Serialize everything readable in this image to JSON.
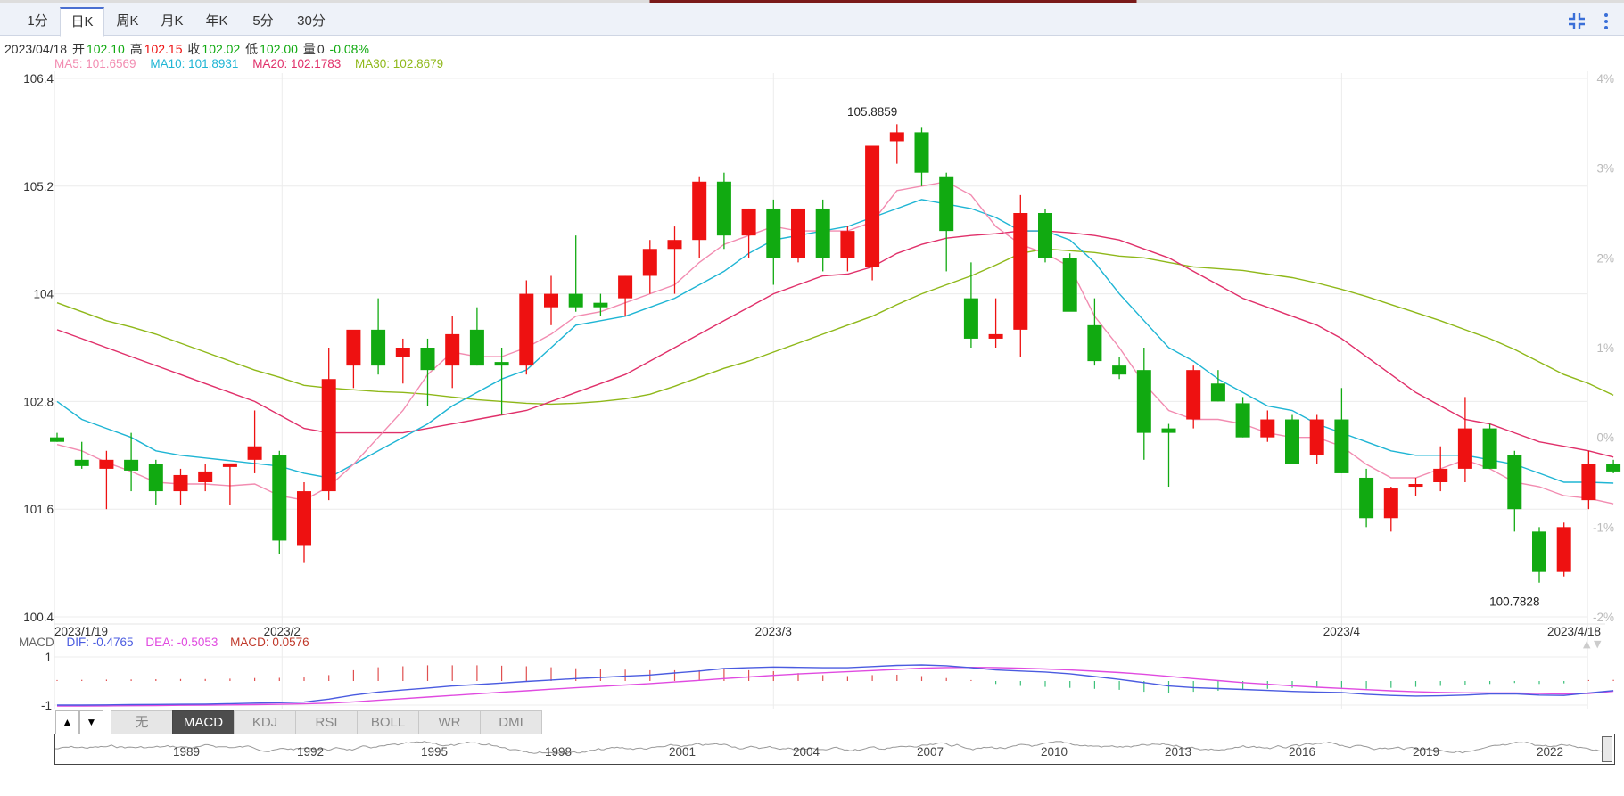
{
  "tabs": [
    {
      "label": "1分",
      "active": false
    },
    {
      "label": "日K",
      "active": true
    },
    {
      "label": "周K",
      "active": false
    },
    {
      "label": "月K",
      "active": false
    },
    {
      "label": "年K",
      "active": false
    },
    {
      "label": "5分",
      "active": false
    },
    {
      "label": "30分",
      "active": false
    }
  ],
  "toolbar": {
    "icons": [
      "compress-icon",
      "more-vertical-icon"
    ]
  },
  "info": {
    "date": "2023/04/18",
    "open_label": "开",
    "open": "102.10",
    "high_label": "高",
    "high": "102.15",
    "close_label": "收",
    "close": "102.02",
    "low_label": "低",
    "low": "102.00",
    "volume_label": "量",
    "volume": "0",
    "change": "-0.08%"
  },
  "ma": {
    "ma5": "MA5: 101.6569",
    "ma10": "MA10: 101.8931",
    "ma20": "MA20: 102.1783",
    "ma30": "MA30: 102.8679"
  },
  "macd_legend": {
    "label": "MACD",
    "dif": "DIF: -0.4765",
    "dea": "DEA: -0.5053",
    "macd": "MACD: 0.0576"
  },
  "colors": {
    "up": "#ee1111",
    "down": "#11aa11",
    "ma5": "#f28cb1",
    "ma10": "#1fb5d4",
    "ma20": "#e0306a",
    "ma30": "#8fb81a",
    "dif": "#4a5be0",
    "dea": "#e04ae0"
  },
  "indicator_buttons": [
    {
      "label": "无",
      "active": false
    },
    {
      "label": "MACD",
      "active": true
    },
    {
      "label": "KDJ",
      "active": false
    },
    {
      "label": "RSI",
      "active": false
    },
    {
      "label": "BOLL",
      "active": false
    },
    {
      "label": "WR",
      "active": false
    },
    {
      "label": "DMI",
      "active": false
    }
  ],
  "nav_buttons": {
    "up": "▲",
    "down": "▼"
  },
  "navigator": {
    "years": [
      "1989",
      "1992",
      "1995",
      "1998",
      "2001",
      "2004",
      "2007",
      "2010",
      "2013",
      "2016",
      "2019",
      "2022"
    ]
  },
  "chart_data": [
    {
      "type": "candlestick",
      "yticks": [
        "106.4",
        "105.2",
        "104",
        "102.8",
        "101.6",
        "100.4"
      ],
      "ylim": [
        100.4,
        106.4
      ],
      "pct_ticks": [
        "4%",
        "3%",
        "2%",
        "1%",
        "0%",
        "-1%",
        "-2%"
      ],
      "xticks": [
        "2023/1/19",
        "2023/2",
        "2023/3",
        "2023/4",
        "2023/4/18"
      ],
      "xtick_index": [
        0,
        9,
        29,
        52,
        62
      ],
      "annotations": [
        {
          "text": "105.8859",
          "index": 33,
          "value": 105.8859
        },
        {
          "text": "100.7828",
          "index": 59,
          "value": 100.7828
        }
      ],
      "candles": [
        {
          "o": 102.4,
          "h": 102.45,
          "l": 102.35,
          "c": 102.35
        },
        {
          "o": 102.15,
          "h": 102.35,
          "l": 102.05,
          "c": 102.08
        },
        {
          "o": 102.05,
          "h": 102.25,
          "l": 101.6,
          "c": 102.15
        },
        {
          "o": 102.15,
          "h": 102.45,
          "l": 101.8,
          "c": 102.03
        },
        {
          "o": 102.1,
          "h": 102.15,
          "l": 101.65,
          "c": 101.8
        },
        {
          "o": 101.8,
          "h": 102.05,
          "l": 101.65,
          "c": 101.98
        },
        {
          "o": 101.9,
          "h": 102.1,
          "l": 101.8,
          "c": 102.02
        },
        {
          "o": 102.07,
          "h": 102.1,
          "l": 101.65,
          "c": 102.11
        },
        {
          "o": 102.15,
          "h": 102.7,
          "l": 102.0,
          "c": 102.3
        },
        {
          "o": 102.2,
          "h": 102.25,
          "l": 101.1,
          "c": 101.25
        },
        {
          "o": 101.2,
          "h": 101.9,
          "l": 101.0,
          "c": 101.8
        },
        {
          "o": 101.8,
          "h": 103.4,
          "l": 101.7,
          "c": 103.05
        },
        {
          "o": 103.2,
          "h": 103.55,
          "l": 102.95,
          "c": 103.6
        },
        {
          "o": 103.6,
          "h": 103.95,
          "l": 103.1,
          "c": 103.2
        },
        {
          "o": 103.3,
          "h": 103.5,
          "l": 103.0,
          "c": 103.4
        },
        {
          "o": 103.4,
          "h": 103.5,
          "l": 102.75,
          "c": 103.15
        },
        {
          "o": 103.2,
          "h": 103.75,
          "l": 102.95,
          "c": 103.55
        },
        {
          "o": 103.6,
          "h": 103.85,
          "l": 103.2,
          "c": 103.2
        },
        {
          "o": 103.24,
          "h": 103.4,
          "l": 102.65,
          "c": 103.2
        },
        {
          "o": 103.2,
          "h": 104.15,
          "l": 103.1,
          "c": 104.0
        },
        {
          "o": 103.85,
          "h": 104.2,
          "l": 103.65,
          "c": 104.0
        },
        {
          "o": 104.0,
          "h": 104.65,
          "l": 103.8,
          "c": 103.85
        },
        {
          "o": 103.9,
          "h": 104.0,
          "l": 103.75,
          "c": 103.85
        },
        {
          "o": 103.95,
          "h": 104.2,
          "l": 103.75,
          "c": 104.2
        },
        {
          "o": 104.2,
          "h": 104.6,
          "l": 104.0,
          "c": 104.5
        },
        {
          "o": 104.5,
          "h": 104.75,
          "l": 104.0,
          "c": 104.6
        },
        {
          "o": 104.6,
          "h": 105.3,
          "l": 104.4,
          "c": 105.25
        },
        {
          "o": 105.25,
          "h": 105.35,
          "l": 104.5,
          "c": 104.65
        },
        {
          "o": 104.65,
          "h": 104.95,
          "l": 104.4,
          "c": 104.95
        },
        {
          "o": 104.95,
          "h": 105.05,
          "l": 104.1,
          "c": 104.4
        },
        {
          "o": 104.4,
          "h": 104.95,
          "l": 104.35,
          "c": 104.95
        },
        {
          "o": 104.95,
          "h": 105.05,
          "l": 104.25,
          "c": 104.4
        },
        {
          "o": 104.4,
          "h": 104.75,
          "l": 104.25,
          "c": 104.7
        },
        {
          "o": 104.3,
          "h": 105.65,
          "l": 104.15,
          "c": 105.65
        },
        {
          "o": 105.7,
          "h": 105.89,
          "l": 105.45,
          "c": 105.8
        },
        {
          "o": 105.8,
          "h": 105.85,
          "l": 105.2,
          "c": 105.35
        },
        {
          "o": 105.3,
          "h": 105.35,
          "l": 104.25,
          "c": 104.7
        },
        {
          "o": 103.95,
          "h": 104.35,
          "l": 103.4,
          "c": 103.5
        },
        {
          "o": 103.5,
          "h": 103.95,
          "l": 103.4,
          "c": 103.55
        },
        {
          "o": 103.6,
          "h": 105.1,
          "l": 103.3,
          "c": 104.9
        },
        {
          "o": 104.9,
          "h": 104.95,
          "l": 104.35,
          "c": 104.4
        },
        {
          "o": 104.4,
          "h": 104.45,
          "l": 103.85,
          "c": 103.8
        },
        {
          "o": 103.65,
          "h": 103.95,
          "l": 103.2,
          "c": 103.25
        },
        {
          "o": 103.2,
          "h": 103.3,
          "l": 103.05,
          "c": 103.1
        },
        {
          "o": 103.15,
          "h": 103.4,
          "l": 102.15,
          "c": 102.45
        },
        {
          "o": 102.5,
          "h": 102.55,
          "l": 101.85,
          "c": 102.45
        },
        {
          "o": 102.6,
          "h": 103.2,
          "l": 102.5,
          "c": 103.15
        },
        {
          "o": 103.0,
          "h": 103.15,
          "l": 102.8,
          "c": 102.8
        },
        {
          "o": 102.78,
          "h": 102.85,
          "l": 102.4,
          "c": 102.4
        },
        {
          "o": 102.4,
          "h": 102.7,
          "l": 102.35,
          "c": 102.6
        },
        {
          "o": 102.6,
          "h": 102.65,
          "l": 102.1,
          "c": 102.1
        },
        {
          "o": 102.2,
          "h": 102.65,
          "l": 102.1,
          "c": 102.6
        },
        {
          "o": 102.6,
          "h": 102.95,
          "l": 102.0,
          "c": 102.0
        },
        {
          "o": 101.95,
          "h": 102.05,
          "l": 101.4,
          "c": 101.5
        },
        {
          "o": 101.5,
          "h": 101.85,
          "l": 101.35,
          "c": 101.83
        },
        {
          "o": 101.85,
          "h": 101.95,
          "l": 101.75,
          "c": 101.88
        },
        {
          "o": 101.9,
          "h": 102.3,
          "l": 101.8,
          "c": 102.05
        },
        {
          "o": 102.05,
          "h": 102.85,
          "l": 101.9,
          "c": 102.5
        },
        {
          "o": 102.5,
          "h": 102.55,
          "l": 102.05,
          "c": 102.05
        },
        {
          "o": 102.2,
          "h": 102.25,
          "l": 101.35,
          "c": 101.6
        },
        {
          "o": 101.35,
          "h": 101.4,
          "l": 100.78,
          "c": 100.9
        },
        {
          "o": 100.9,
          "h": 101.45,
          "l": 100.85,
          "c": 101.4
        },
        {
          "o": 101.7,
          "h": 102.25,
          "l": 101.6,
          "c": 102.1
        },
        {
          "o": 102.1,
          "h": 102.15,
          "l": 102.0,
          "c": 102.02
        }
      ],
      "ma5": [
        102.32,
        102.25,
        102.12,
        102.02,
        101.9,
        101.88,
        101.88,
        101.86,
        101.88,
        101.75,
        101.7,
        101.85,
        102.1,
        102.4,
        102.7,
        103.1,
        103.35,
        103.3,
        103.3,
        103.4,
        103.55,
        103.75,
        103.8,
        103.9,
        104.0,
        104.1,
        104.35,
        104.55,
        104.65,
        104.75,
        104.7,
        104.7,
        104.7,
        104.8,
        105.15,
        105.2,
        105.25,
        105.1,
        104.75,
        104.55,
        104.45,
        104.3,
        103.75,
        103.4,
        103.0,
        102.7,
        102.6,
        102.6,
        102.55,
        102.45,
        102.4,
        102.4,
        102.3,
        102.1,
        101.95,
        101.95,
        102.05,
        102.15,
        102.05,
        101.9,
        101.85,
        101.75,
        101.72,
        101.66
      ],
      "ma10": [
        102.8,
        102.6,
        102.5,
        102.4,
        102.25,
        102.2,
        102.17,
        102.14,
        102.11,
        102.08,
        102.0,
        101.95,
        102.1,
        102.25,
        102.4,
        102.55,
        102.75,
        102.9,
        103.05,
        103.15,
        103.4,
        103.65,
        103.7,
        103.75,
        103.85,
        103.95,
        104.1,
        104.25,
        104.45,
        104.6,
        104.65,
        104.7,
        104.75,
        104.85,
        104.95,
        105.05,
        105.0,
        104.95,
        104.85,
        104.7,
        104.7,
        104.6,
        104.35,
        104.0,
        103.7,
        103.4,
        103.25,
        103.05,
        102.9,
        102.75,
        102.7,
        102.55,
        102.45,
        102.35,
        102.25,
        102.2,
        102.2,
        102.2,
        102.15,
        102.1,
        102.0,
        101.9,
        101.9,
        101.89
      ],
      "ma20": [
        103.6,
        103.5,
        103.4,
        103.3,
        103.2,
        103.1,
        103.0,
        102.9,
        102.8,
        102.65,
        102.5,
        102.45,
        102.45,
        102.45,
        102.45,
        102.5,
        102.55,
        102.6,
        102.65,
        102.7,
        102.8,
        102.9,
        103.0,
        103.1,
        103.25,
        103.4,
        103.55,
        103.7,
        103.85,
        104.0,
        104.1,
        104.2,
        104.22,
        104.3,
        104.45,
        104.55,
        104.62,
        104.65,
        104.67,
        104.7,
        104.7,
        104.68,
        104.65,
        104.6,
        104.5,
        104.4,
        104.25,
        104.1,
        103.95,
        103.85,
        103.75,
        103.65,
        103.5,
        103.3,
        103.1,
        102.9,
        102.75,
        102.6,
        102.55,
        102.45,
        102.35,
        102.3,
        102.25,
        102.18
      ],
      "ma30": [
        103.9,
        103.8,
        103.7,
        103.63,
        103.55,
        103.45,
        103.35,
        103.25,
        103.15,
        103.07,
        102.98,
        102.95,
        102.93,
        102.91,
        102.9,
        102.88,
        102.85,
        102.82,
        102.8,
        102.78,
        102.77,
        102.78,
        102.8,
        102.83,
        102.88,
        102.97,
        103.07,
        103.17,
        103.25,
        103.35,
        103.45,
        103.55,
        103.65,
        103.75,
        103.88,
        104.0,
        104.1,
        104.2,
        104.32,
        104.45,
        104.5,
        104.48,
        104.46,
        104.42,
        104.4,
        104.35,
        104.3,
        104.28,
        104.26,
        104.22,
        104.18,
        104.12,
        104.05,
        103.97,
        103.88,
        103.79,
        103.7,
        103.6,
        103.5,
        103.38,
        103.24,
        103.1,
        103.0,
        102.87
      ]
    },
    {
      "type": "macd",
      "yticks": [
        "1",
        "-1"
      ],
      "ylim": [
        -1.2,
        1.2
      ],
      "dif": [
        -1.2,
        -1.2,
        -1.19,
        -1.18,
        -1.17,
        -1.16,
        -1.15,
        -1.13,
        -1.1,
        -1.08,
        -1.05,
        -0.9,
        -0.7,
        -0.55,
        -0.45,
        -0.35,
        -0.25,
        -0.18,
        -0.1,
        -0.02,
        0.05,
        0.12,
        0.18,
        0.24,
        0.3,
        0.4,
        0.5,
        0.62,
        0.66,
        0.7,
        0.68,
        0.66,
        0.66,
        0.72,
        0.78,
        0.8,
        0.76,
        0.66,
        0.55,
        0.5,
        0.45,
        0.36,
        0.22,
        0.08,
        -0.08,
        -0.25,
        -0.33,
        -0.38,
        -0.42,
        -0.47,
        -0.52,
        -0.55,
        -0.58,
        -0.66,
        -0.72,
        -0.75,
        -0.74,
        -0.7,
        -0.65,
        -0.64,
        -0.7,
        -0.72,
        -0.6,
        -0.48
      ],
      "dea": [
        -1.25,
        -1.25,
        -1.24,
        -1.23,
        -1.22,
        -1.21,
        -1.2,
        -1.19,
        -1.18,
        -1.16,
        -1.14,
        -1.1,
        -1.04,
        -0.96,
        -0.88,
        -0.8,
        -0.72,
        -0.64,
        -0.56,
        -0.49,
        -0.41,
        -0.34,
        -0.27,
        -0.2,
        -0.13,
        -0.05,
        0.03,
        0.12,
        0.2,
        0.28,
        0.35,
        0.41,
        0.46,
        0.52,
        0.58,
        0.64,
        0.67,
        0.68,
        0.67,
        0.64,
        0.6,
        0.55,
        0.49,
        0.42,
        0.34,
        0.23,
        0.12,
        0.02,
        -0.08,
        -0.16,
        -0.24,
        -0.31,
        -0.37,
        -0.43,
        -0.49,
        -0.54,
        -0.57,
        -0.59,
        -0.6,
        -0.6,
        -0.62,
        -0.65,
        -0.62,
        -0.51
      ],
      "hist": [
        0.05,
        0.06,
        0.07,
        0.08,
        0.09,
        0.1,
        0.1,
        0.12,
        0.15,
        0.16,
        0.18,
        0.3,
        0.55,
        0.7,
        0.75,
        0.8,
        0.8,
        0.8,
        0.78,
        0.75,
        0.7,
        0.65,
        0.62,
        0.58,
        0.55,
        0.55,
        0.55,
        0.6,
        0.55,
        0.5,
        0.4,
        0.3,
        0.25,
        0.3,
        0.32,
        0.25,
        0.15,
        0.05,
        -0.15,
        -0.25,
        -0.3,
        -0.35,
        -0.4,
        -0.45,
        -0.55,
        -0.6,
        -0.55,
        -0.5,
        -0.45,
        -0.4,
        -0.35,
        -0.35,
        -0.35,
        -0.4,
        -0.35,
        -0.3,
        -0.25,
        -0.2,
        -0.15,
        -0.1,
        -0.15,
        -0.12,
        0.05,
        0.06
      ]
    }
  ]
}
